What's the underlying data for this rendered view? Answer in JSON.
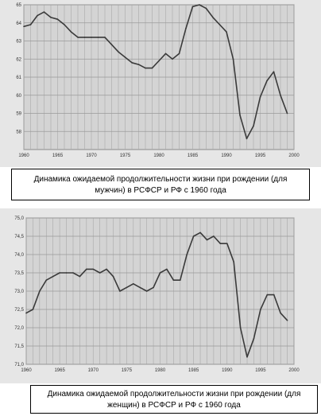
{
  "chart_data": [
    {
      "type": "line",
      "title": "",
      "xlabel": "",
      "ylabel": "",
      "caption": "Динамика ожидаемой продолжительности жизни при рождении (для мужчин) в РСФСР и РФ с 1960 года",
      "xlim": [
        1960,
        2000
      ],
      "ylim": [
        57,
        65
      ],
      "x_ticks": [
        "1960",
        "1965",
        "1970",
        "1975",
        "1980",
        "1985",
        "1990",
        "1995",
        "2000"
      ],
      "y_ticks": [
        "58",
        "59",
        "60",
        "61",
        "62",
        "63",
        "64",
        "65"
      ],
      "grid": true,
      "x": [
        1960,
        1961,
        1962,
        1963,
        1964,
        1965,
        1966,
        1967,
        1968,
        1969,
        1970,
        1971,
        1972,
        1973,
        1974,
        1975,
        1976,
        1977,
        1978,
        1979,
        1980,
        1981,
        1982,
        1983,
        1984,
        1985,
        1986,
        1987,
        1988,
        1989,
        1990,
        1991,
        1992,
        1993,
        1994,
        1995,
        1996,
        1997,
        1998,
        1999
      ],
      "values": [
        63.8,
        63.9,
        64.4,
        64.6,
        64.3,
        64.2,
        63.9,
        63.5,
        63.2,
        63.2,
        63.2,
        63.2,
        63.2,
        62.8,
        62.4,
        62.1,
        61.8,
        61.7,
        61.5,
        61.5,
        61.9,
        62.3,
        62.0,
        62.3,
        63.7,
        64.9,
        65.0,
        64.8,
        64.3,
        63.9,
        63.5,
        62.0,
        58.9,
        57.6,
        58.3,
        59.9,
        60.8,
        61.3,
        60.0,
        59.0
      ]
    },
    {
      "type": "line",
      "title": "",
      "xlabel": "",
      "ylabel": "",
      "caption": "Динамика ожидаемой продолжительности жизни при рождении (для женщин) в РСФСР и РФ с 1960 года",
      "xlim": [
        1960,
        2000
      ],
      "ylim": [
        71,
        75
      ],
      "x_ticks": [
        "1960",
        "1965",
        "1970",
        "1975",
        "1980",
        "1985",
        "1990",
        "1995",
        "2000"
      ],
      "y_ticks": [
        "71,0",
        "71,5",
        "72,0",
        "72,5",
        "73,0",
        "73,5",
        "74,0",
        "74,5",
        "75,0"
      ],
      "grid": true,
      "x": [
        1960,
        1961,
        1962,
        1963,
        1964,
        1965,
        1966,
        1967,
        1968,
        1969,
        1970,
        1971,
        1972,
        1973,
        1974,
        1975,
        1976,
        1977,
        1978,
        1979,
        1980,
        1981,
        1982,
        1983,
        1984,
        1985,
        1986,
        1987,
        1988,
        1989,
        1990,
        1991,
        1992,
        1993,
        1994,
        1995,
        1996,
        1997,
        1998,
        1999
      ],
      "values": [
        72.4,
        72.5,
        73.0,
        73.3,
        73.4,
        73.5,
        73.5,
        73.5,
        73.4,
        73.6,
        73.6,
        73.5,
        73.6,
        73.4,
        73.0,
        73.1,
        73.2,
        73.1,
        73.0,
        73.1,
        73.5,
        73.6,
        73.3,
        73.3,
        74.0,
        74.5,
        74.6,
        74.4,
        74.5,
        74.3,
        74.3,
        73.8,
        72.0,
        71.2,
        71.7,
        72.5,
        72.9,
        72.9,
        72.4,
        72.2
      ]
    }
  ]
}
